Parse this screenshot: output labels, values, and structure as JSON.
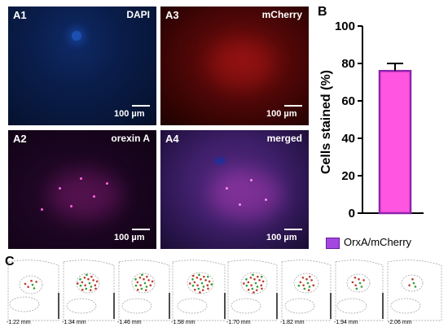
{
  "panels": {
    "a1": {
      "label": "A1",
      "stain": "DAPI",
      "scale": "100 µm"
    },
    "a3": {
      "label": "A3",
      "stain": "mCherry",
      "scale": "100 µm"
    },
    "a2": {
      "label": "A2",
      "stain": "orexin A",
      "scale": "100 µm"
    },
    "a4": {
      "label": "A4",
      "stain": "merged",
      "scale": "100 µm"
    }
  },
  "panel_b": {
    "label": "B"
  },
  "panel_c": {
    "label": "C"
  },
  "chart_data": {
    "type": "bar",
    "categories": [
      "OrxA/mCherry"
    ],
    "series": [
      {
        "name": "OrxA/mCherry",
        "values": [
          76
        ]
      }
    ],
    "error": [
      4
    ],
    "xlabel": "",
    "ylabel": "Cells stained (%)",
    "ylim": [
      0,
      100
    ],
    "yticks": [
      "0",
      "20",
      "40",
      "60",
      "80",
      "100"
    ],
    "grid": false,
    "legend": "bottom",
    "colors": {
      "bar_fill": "#ff55e0",
      "bar_stroke": "#8e24aa",
      "legend_swatch": "#a347e0"
    }
  },
  "sections": [
    "-1.22 mm",
    "-1.34 mm",
    "-1.46 mm",
    "-1.58 mm",
    "-1.70 mm",
    "-1.82 mm",
    "-1.94 mm",
    "-2.06 mm"
  ]
}
